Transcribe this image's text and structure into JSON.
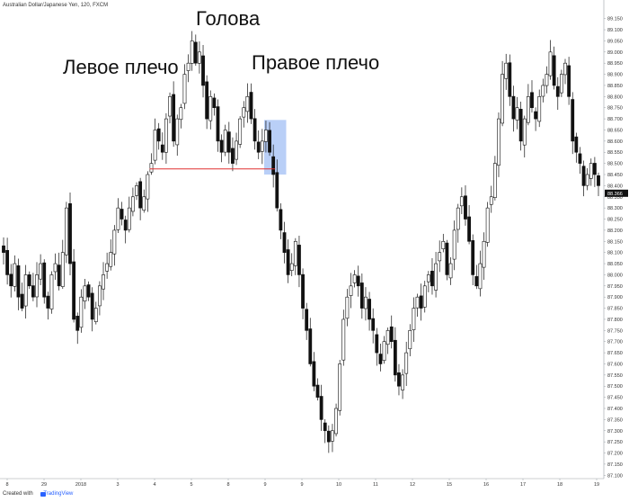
{
  "chart_data": {
    "type": "candlestick",
    "title": "Australian Dollar/Japanese Yen, 120, FXCM",
    "current_price": "88.366",
    "y_ticks": [
      "89.150",
      "89.100",
      "89.050",
      "89.000",
      "88.950",
      "88.900",
      "88.850",
      "88.800",
      "88.750",
      "88.700",
      "88.650",
      "88.600",
      "88.550",
      "88.500",
      "88.450",
      "88.400",
      "88.350",
      "88.300",
      "88.250",
      "88.200",
      "88.150",
      "88.100",
      "88.050",
      "88.000",
      "87.950",
      "87.900",
      "87.850",
      "87.800",
      "87.750",
      "87.700",
      "87.650",
      "87.600",
      "87.550",
      "87.500",
      "87.450",
      "87.400",
      "87.350",
      "87.300",
      "87.250",
      "87.200",
      "87.150",
      "87.100"
    ],
    "x_ticks": [
      "8",
      "29",
      "2018",
      "3",
      "4",
      "5",
      "8",
      "9",
      "9",
      "10",
      "11",
      "12",
      "15",
      "16",
      "17",
      "18",
      "19"
    ],
    "ylim": [
      87.085,
      89.185
    ],
    "neckline": 88.475,
    "highlight_zone": {
      "x_index": [
        71,
        76
      ],
      "y_range": [
        88.45,
        88.695
      ]
    },
    "path": [
      88.1,
      88.0,
      87.95,
      88.05,
      87.9,
      87.85,
      88.0,
      87.95,
      87.9,
      88.0,
      88.05,
      87.9,
      87.85,
      88.0,
      88.05,
      87.95,
      88.1,
      88.3,
      88.05,
      87.8,
      87.75,
      87.9,
      87.95,
      87.9,
      87.8,
      87.85,
      87.95,
      88.0,
      88.05,
      88.1,
      88.2,
      88.3,
      88.25,
      88.2,
      88.3,
      88.35,
      88.4,
      88.3,
      88.35,
      88.45,
      88.5,
      88.65,
      88.6,
      88.55,
      88.7,
      88.8,
      88.6,
      88.7,
      88.75,
      88.9,
      88.95,
      89.05,
      88.95,
      89.0,
      88.85,
      88.7,
      88.8,
      88.75,
      88.6,
      88.55,
      88.65,
      88.55,
      88.5,
      88.6,
      88.7,
      88.75,
      88.8,
      88.7,
      88.6,
      88.55,
      88.6,
      88.65,
      88.55,
      88.45,
      88.3,
      88.2,
      88.1,
      88.0,
      88.05,
      88.15,
      88.0,
      87.85,
      87.75,
      87.6,
      87.5,
      87.45,
      87.35,
      87.3,
      87.25,
      87.3,
      87.4,
      87.6,
      87.8,
      87.9,
      87.95,
      88.0,
      87.95,
      87.85,
      87.9,
      87.8,
      87.75,
      87.65,
      87.6,
      87.7,
      87.75,
      87.7,
      87.55,
      87.5,
      87.55,
      87.65,
      87.75,
      87.85,
      87.9,
      87.85,
      87.95,
      88.0,
      87.95,
      88.05,
      88.1,
      88.15,
      88.0,
      88.05,
      88.2,
      88.3,
      88.35,
      88.25,
      88.15,
      88.0,
      87.95,
      88.05,
      88.15,
      88.3,
      88.35,
      88.5,
      88.7,
      88.9,
      88.95,
      88.8,
      88.7,
      88.75,
      88.6,
      88.7,
      88.8,
      88.75,
      88.7,
      88.8,
      88.85,
      88.9,
      89.0,
      88.85,
      88.8,
      88.9,
      88.95,
      88.8,
      88.6,
      88.55,
      88.5,
      88.4,
      88.45,
      88.5,
      88.45,
      88.4
    ]
  },
  "annotations": {
    "head": "Голова",
    "left_shoulder": "Левое плечо",
    "right_shoulder": "Правое плечо"
  },
  "footer": {
    "created_with": "Created with",
    "brand": "TradingView"
  }
}
